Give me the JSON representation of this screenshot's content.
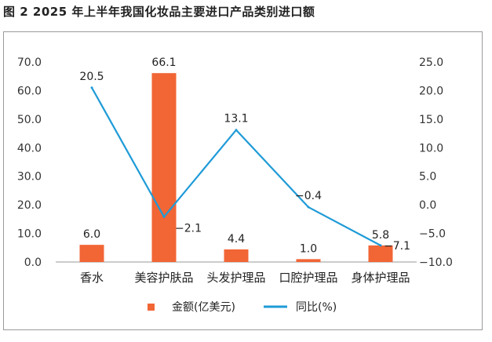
{
  "figure_title": "图 2   2025 年上半年我国化妆品主要进口产品类别进口额",
  "chart_data": {
    "type": "bar",
    "categories": [
      "香水",
      "美容护肤品",
      "头发护理品",
      "口腔护理品",
      "身体护理品"
    ],
    "series": [
      {
        "name": "金额(亿美元)",
        "type": "bar",
        "axis": "left",
        "color": "#f26535",
        "values": [
          6.0,
          66.1,
          4.4,
          1.0,
          5.8
        ],
        "labels": [
          "6.0",
          "66.1",
          "4.4",
          "1.0",
          "5.8"
        ]
      },
      {
        "name": "同比(%)",
        "type": "line",
        "axis": "right",
        "color": "#1f9bd7",
        "values": [
          20.5,
          -2.1,
          13.1,
          -0.4,
          -7.1
        ],
        "labels": [
          "20.5",
          "−2.1",
          "13.1",
          "−0.4",
          "−7.1"
        ]
      }
    ],
    "y_left": {
      "ylim": [
        0,
        70
      ],
      "ticks": [
        "0.0",
        "10.0",
        "20.0",
        "30.0",
        "40.0",
        "50.0",
        "60.0",
        "70.0"
      ]
    },
    "y_right": {
      "ylim": [
        -10,
        25
      ],
      "ticks": [
        "−10.0",
        "−5.0",
        "0.0",
        "5.0",
        "10.0",
        "15.0",
        "20.0",
        "25.0"
      ]
    },
    "grid": false,
    "legend_position": "bottom"
  }
}
